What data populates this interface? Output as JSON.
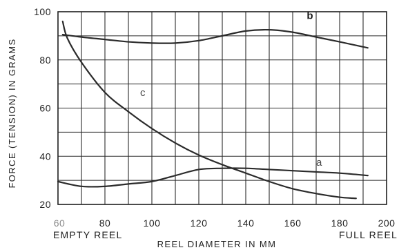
{
  "chart_data": {
    "type": "line",
    "title": "",
    "xlabel": "REEL DIAMETER IN MM",
    "ylabel": "FORCE (TENSION) IN GRAMS",
    "xlim": [
      60,
      200
    ],
    "ylim": [
      20,
      100
    ],
    "grid": true,
    "x_ticks": [
      "60",
      "80",
      "100",
      "120",
      "140",
      "160",
      "180",
      "200"
    ],
    "y_ticks": [
      "20",
      "40",
      "60",
      "80",
      "100"
    ],
    "annotations": {
      "x_start": "EMPTY REEL",
      "x_end": "FULL REEL"
    },
    "series": [
      {
        "name": "a",
        "x": [
          60,
          70,
          80,
          90,
          100,
          110,
          120,
          130,
          140,
          150,
          160,
          170,
          180,
          192
        ],
        "y": [
          29.5,
          27.5,
          27.5,
          28.5,
          29.5,
          32,
          34.5,
          35,
          35,
          34.5,
          34,
          33.5,
          33,
          32
        ]
      },
      {
        "name": "b",
        "x": [
          62,
          70,
          80,
          90,
          100,
          110,
          120,
          130,
          140,
          150,
          160,
          170,
          180,
          192
        ],
        "y": [
          90.5,
          89.5,
          88.5,
          87.5,
          87,
          87,
          88,
          90,
          92,
          92.5,
          91.5,
          89.5,
          87.5,
          85
        ]
      },
      {
        "name": "c",
        "x": [
          62,
          64,
          70,
          80,
          90,
          100,
          110,
          120,
          130,
          140,
          150,
          160,
          170,
          180,
          187
        ],
        "y": [
          96,
          89,
          79,
          66.5,
          58.5,
          51.5,
          45.5,
          40.5,
          36.5,
          33,
          29.5,
          26.5,
          24.5,
          23,
          22.5
        ]
      }
    ],
    "series_label_points": {
      "a": [
        170,
        36
      ],
      "b": [
        166,
        97
      ],
      "c": [
        95,
        65
      ]
    }
  }
}
